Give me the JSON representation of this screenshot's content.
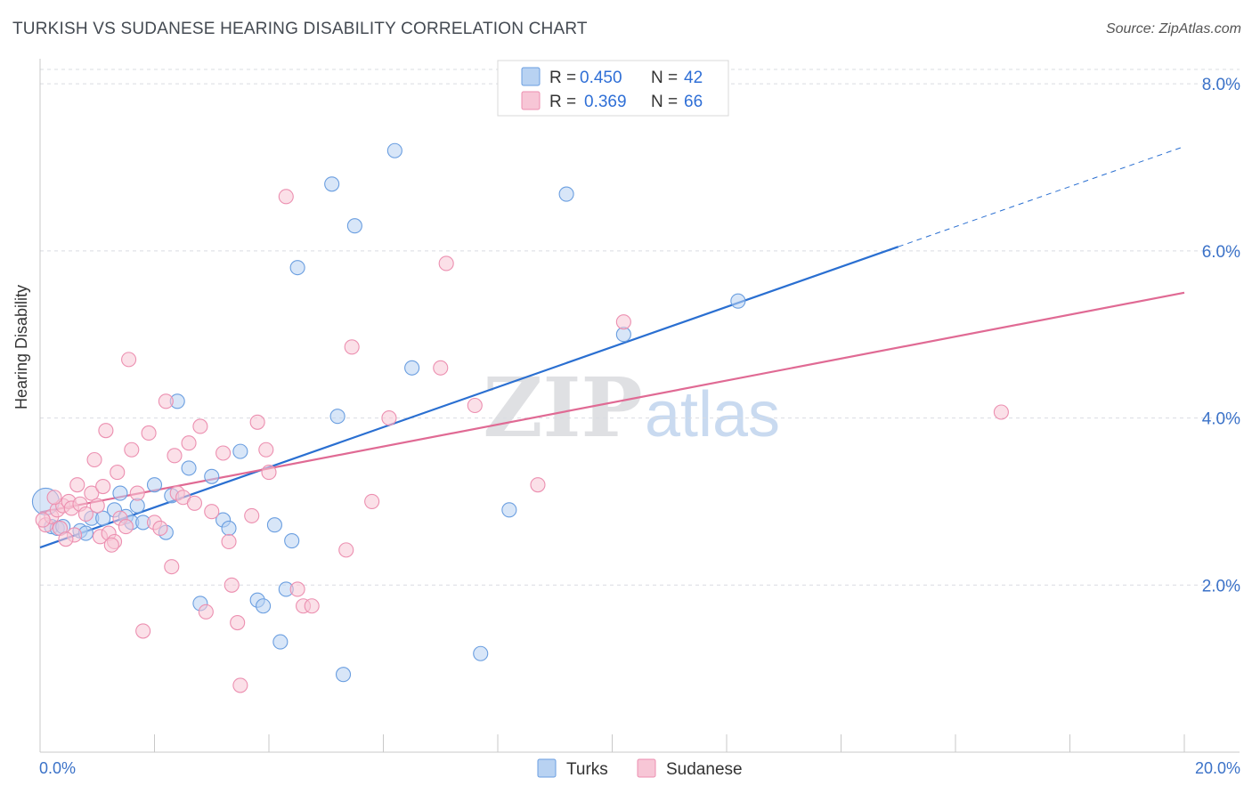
{
  "title": "TURKISH VS SUDANESE HEARING DISABILITY CORRELATION CHART",
  "source": "Source: ZipAtlas.com",
  "watermark": {
    "zip": "ZIP",
    "atlas": "atlas"
  },
  "chart_data": {
    "type": "scatter",
    "title": "TURKISH VS SUDANESE HEARING DISABILITY CORRELATION CHART",
    "xlabel": "",
    "ylabel": "Hearing Disability",
    "xlim": [
      0,
      20
    ],
    "ylim": [
      0,
      8.3
    ],
    "x_tick_labels": [
      "0.0%",
      "20.0%"
    ],
    "y_ticks": [
      2,
      4,
      6,
      8
    ],
    "y_tick_labels": [
      "2.0%",
      "4.0%",
      "6.0%",
      "8.0%"
    ],
    "grid": "horizontal dashed",
    "legend_top": [
      {
        "series": "Turks",
        "r_label": "R =",
        "r_value": "0.450",
        "n_label": "N =",
        "n_value": "42"
      },
      {
        "series": "Sudanese",
        "r_label": "R =",
        "r_value": "0.369",
        "n_label": "N =",
        "n_value": "66"
      }
    ],
    "series": [
      {
        "name": "Turks",
        "color": "#6a9ee0",
        "fill": "#b8d2f2",
        "line_color": "#2a6fd1",
        "trend": {
          "x0": 0,
          "y0": 2.45,
          "x1": 15,
          "y1": 6.05,
          "dash_to_x": 20,
          "dash_to_y": 7.25
        },
        "points": [
          [
            0.1,
            3.0
          ],
          [
            0.2,
            2.7
          ],
          [
            0.3,
            2.68
          ],
          [
            0.4,
            2.7
          ],
          [
            0.7,
            2.65
          ],
          [
            0.8,
            2.62
          ],
          [
            0.9,
            2.8
          ],
          [
            1.1,
            2.8
          ],
          [
            1.3,
            2.9
          ],
          [
            1.4,
            3.1
          ],
          [
            1.5,
            2.82
          ],
          [
            1.6,
            2.75
          ],
          [
            1.7,
            2.95
          ],
          [
            1.8,
            2.75
          ],
          [
            2.0,
            3.2
          ],
          [
            2.2,
            2.63
          ],
          [
            2.3,
            3.07
          ],
          [
            2.4,
            4.2
          ],
          [
            2.6,
            3.4
          ],
          [
            2.8,
            1.78
          ],
          [
            3.0,
            3.3
          ],
          [
            3.2,
            2.78
          ],
          [
            3.3,
            2.68
          ],
          [
            3.5,
            3.6
          ],
          [
            3.8,
            1.82
          ],
          [
            3.9,
            1.75
          ],
          [
            4.1,
            2.72
          ],
          [
            4.2,
            1.32
          ],
          [
            4.3,
            1.95
          ],
          [
            4.4,
            2.53
          ],
          [
            4.5,
            5.8
          ],
          [
            5.1,
            6.8
          ],
          [
            5.2,
            4.02
          ],
          [
            5.3,
            0.93
          ],
          [
            5.5,
            6.3
          ],
          [
            6.2,
            7.2
          ],
          [
            6.5,
            4.6
          ],
          [
            7.7,
            1.18
          ],
          [
            8.2,
            2.9
          ],
          [
            9.2,
            6.68
          ],
          [
            10.2,
            5.0
          ],
          [
            12.2,
            5.4
          ]
        ]
      },
      {
        "name": "Sudanese",
        "color": "#ec8fb0",
        "fill": "#f7c6d6",
        "line_color": "#e06a94",
        "trend": {
          "x0": 0,
          "y0": 2.87,
          "x1": 20,
          "y1": 5.5
        },
        "points": [
          [
            0.1,
            2.72
          ],
          [
            0.2,
            2.82
          ],
          [
            0.3,
            2.9
          ],
          [
            0.35,
            2.68
          ],
          [
            0.4,
            2.95
          ],
          [
            0.5,
            3.0
          ],
          [
            0.55,
            2.92
          ],
          [
            0.6,
            2.6
          ],
          [
            0.7,
            2.97
          ],
          [
            0.8,
            2.85
          ],
          [
            0.9,
            3.1
          ],
          [
            0.95,
            3.5
          ],
          [
            1.0,
            2.95
          ],
          [
            1.05,
            2.58
          ],
          [
            1.1,
            3.18
          ],
          [
            1.15,
            3.85
          ],
          [
            1.2,
            2.62
          ],
          [
            1.3,
            2.52
          ],
          [
            1.35,
            3.35
          ],
          [
            1.4,
            2.8
          ],
          [
            1.5,
            2.7
          ],
          [
            1.55,
            4.7
          ],
          [
            1.6,
            3.62
          ],
          [
            1.7,
            3.1
          ],
          [
            1.8,
            1.45
          ],
          [
            1.9,
            3.82
          ],
          [
            2.0,
            2.75
          ],
          [
            2.1,
            2.68
          ],
          [
            2.2,
            4.2
          ],
          [
            2.3,
            2.22
          ],
          [
            2.35,
            3.55
          ],
          [
            2.4,
            3.1
          ],
          [
            2.5,
            3.05
          ],
          [
            2.6,
            3.7
          ],
          [
            2.7,
            2.98
          ],
          [
            2.8,
            3.9
          ],
          [
            2.9,
            1.68
          ],
          [
            3.0,
            2.88
          ],
          [
            3.2,
            3.58
          ],
          [
            3.3,
            2.52
          ],
          [
            3.35,
            2.0
          ],
          [
            3.45,
            1.55
          ],
          [
            3.5,
            0.8
          ],
          [
            3.7,
            2.83
          ],
          [
            3.8,
            3.95
          ],
          [
            3.95,
            3.62
          ],
          [
            4.0,
            3.35
          ],
          [
            4.3,
            6.65
          ],
          [
            4.5,
            1.95
          ],
          [
            4.6,
            1.75
          ],
          [
            4.75,
            1.75
          ],
          [
            5.35,
            2.42
          ],
          [
            5.45,
            4.85
          ],
          [
            5.8,
            3.0
          ],
          [
            6.1,
            4.0
          ],
          [
            7.0,
            4.6
          ],
          [
            7.1,
            5.85
          ],
          [
            7.6,
            4.15
          ],
          [
            8.7,
            3.2
          ],
          [
            10.2,
            5.15
          ],
          [
            16.8,
            4.07
          ],
          [
            0.05,
            2.78
          ],
          [
            0.25,
            3.05
          ],
          [
            0.45,
            2.55
          ],
          [
            0.65,
            3.2
          ],
          [
            1.25,
            2.48
          ]
        ]
      }
    ]
  }
}
